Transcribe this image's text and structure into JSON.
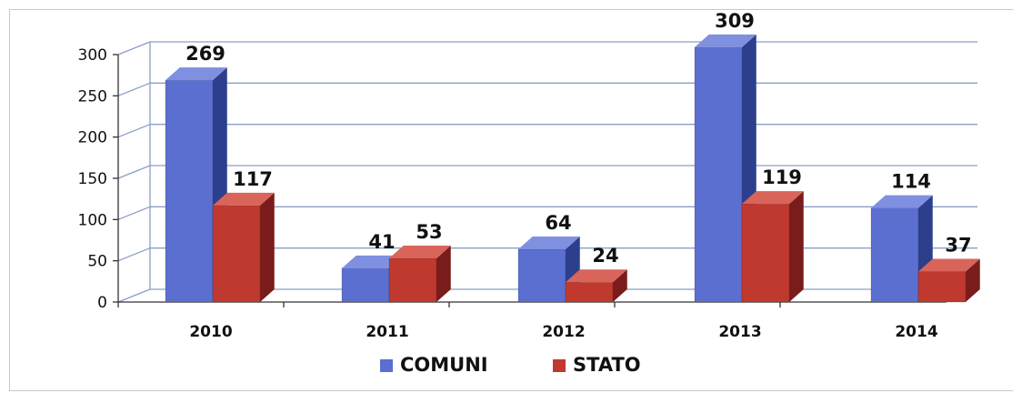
{
  "chart_data": {
    "type": "bar",
    "categories": [
      "2010",
      "2011",
      "2012",
      "2013",
      "2014"
    ],
    "series": [
      {
        "name": "COMUNI",
        "values": [
          269,
          41,
          64,
          309,
          114
        ]
      },
      {
        "name": "STATO",
        "values": [
          117,
          53,
          24,
          119,
          37
        ]
      }
    ],
    "title": "",
    "xlabel": "",
    "ylabel": "",
    "ylim": [
      0,
      300
    ],
    "yticks": [
      "0",
      "50",
      "100",
      "150",
      "200",
      "250",
      "300"
    ],
    "grid": true,
    "legend": "bottom",
    "style": "3d-clustered-column",
    "colors": {
      "COMUNI_front": "#5b6fd0",
      "COMUNI_side": "#2c3f8c",
      "COMUNI_top": "#7f90e0",
      "STATO_front": "#c0392f",
      "STATO_side": "#7a1c1c",
      "STATO_top": "#d8645a",
      "grid": "#8a9fc8"
    }
  }
}
